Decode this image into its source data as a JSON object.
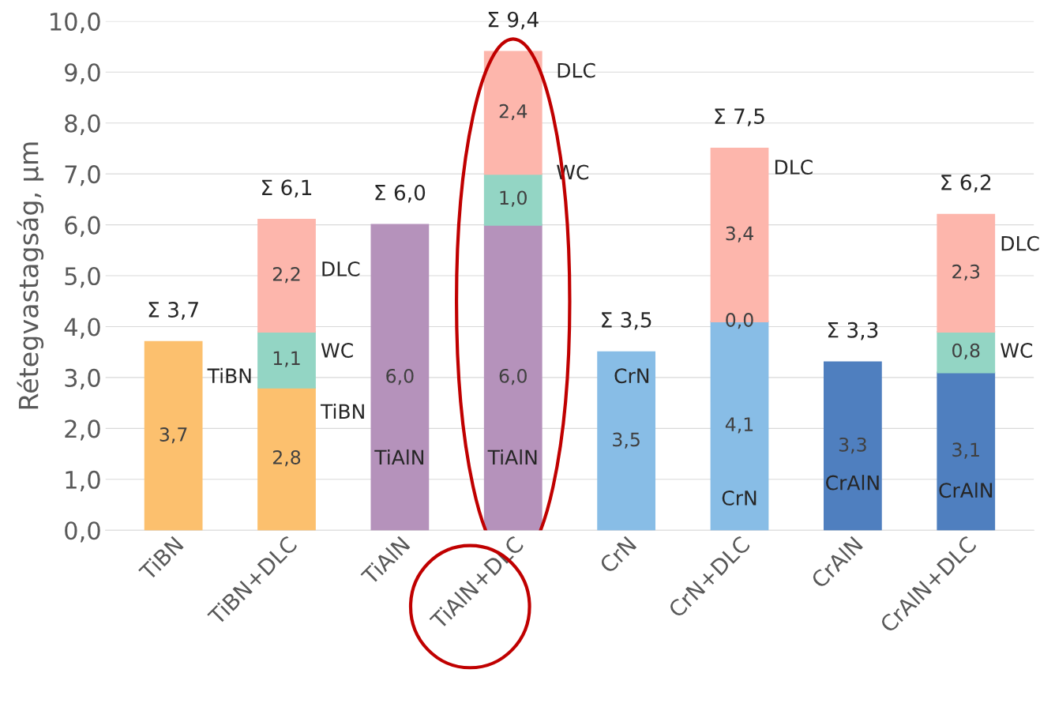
{
  "chart_data": {
    "type": "bar",
    "stacked": true,
    "ylabel": "Rétegvastagság, µm",
    "categories": [
      "TiBN",
      "TiBN+DLC",
      "TiAlN",
      "TiAlN+DLC",
      "CrN",
      "CrN+DLC",
      "CrAlN",
      "CrAlN+DLC"
    ],
    "series": [
      {
        "colors": [
          "#fcc06e",
          "#fcc06e",
          "#b592bb",
          "#b592bb",
          "#88bde6",
          "#88bde6",
          "#4f7fbf",
          "#4f7fbf"
        ],
        "values": [
          3.7,
          2.8,
          6.0,
          6.0,
          3.5,
          4.1,
          3.3,
          3.1
        ],
        "value_labels": [
          "3,7",
          "2,8",
          "6,0",
          "6,0",
          "3,5",
          "4,1",
          "3,3",
          "3,1"
        ]
      },
      {
        "color": "#93d5c4",
        "values": [
          null,
          1.1,
          null,
          1.0,
          null,
          0.0,
          null,
          0.8
        ],
        "value_labels": [
          null,
          "1,1",
          null,
          "1,0",
          null,
          "0,0",
          null,
          "0,8"
        ]
      },
      {
        "color": "#fdb6ac",
        "values": [
          null,
          2.2,
          null,
          2.4,
          null,
          3.4,
          null,
          2.3
        ],
        "value_labels": [
          null,
          "2,2",
          null,
          "2,4",
          null,
          "3,4",
          null,
          "2,3"
        ]
      }
    ],
    "totals": [
      "Σ 3,7",
      "Σ 6,1",
      "Σ 6,0",
      "Σ 9,4",
      "Σ 3,5",
      "Σ 7,5",
      "Σ 3,3",
      "Σ 6,2"
    ],
    "annotations": [
      "TiBN",
      "TiBN",
      "WC",
      "DLC",
      "TiAlN",
      "TiAlN",
      "WC",
      "DLC",
      "CrN",
      "CrN",
      "DLC",
      "CrAlN",
      "CrAlN",
      "WC",
      "DLC"
    ],
    "ylim": [
      0,
      10
    ],
    "yticks": [
      {
        "value": 0,
        "label": "0,0"
      },
      {
        "value": 1,
        "label": "1,0"
      },
      {
        "value": 2,
        "label": "2,0"
      },
      {
        "value": 3,
        "label": "3,0"
      },
      {
        "value": 4,
        "label": "4,0"
      },
      {
        "value": 5,
        "label": "5,0"
      },
      {
        "value": 6,
        "label": "6,0"
      },
      {
        "value": 7,
        "label": "7,0"
      },
      {
        "value": 8,
        "label": "8,0"
      },
      {
        "value": 9,
        "label": "9,0"
      },
      {
        "value": 10,
        "label": "10,0"
      }
    ],
    "grid": "y",
    "legend": false
  }
}
